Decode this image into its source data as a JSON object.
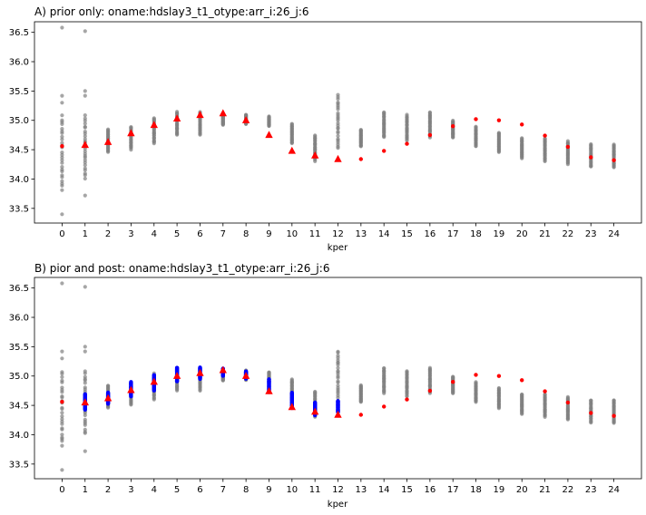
{
  "chart_data": [
    {
      "type": "scatter",
      "title": "A) prior only: oname:hdslay3_t1_otype:arr_i:26_j:6",
      "xlabel": "kper",
      "ylabel": "",
      "x_ticks": [
        0,
        1,
        2,
        3,
        4,
        5,
        6,
        7,
        8,
        9,
        10,
        11,
        12,
        13,
        14,
        15,
        16,
        17,
        18,
        19,
        20,
        21,
        22,
        23,
        24
      ],
      "y_ticks": [
        33.5,
        34.0,
        34.5,
        35.0,
        35.5,
        36.0,
        36.5
      ],
      "y_tick_labels": [
        "33.5",
        "34.0",
        "34.5",
        "35.0",
        "35.5",
        "36.0",
        "36.5"
      ],
      "xlim": [
        -1.2,
        25.2
      ],
      "ylim": [
        33.25,
        36.68
      ],
      "grid": false,
      "prior_color": "#808080",
      "obs_color": "#ff0000",
      "prior_ranges": [
        {
          "kper": 0,
          "lo": 33.8,
          "hi": 35.1
        },
        {
          "kper": 1,
          "lo": 34.0,
          "hi": 35.1
        },
        {
          "kper": 2,
          "lo": 34.45,
          "hi": 34.85
        },
        {
          "kper": 3,
          "lo": 34.5,
          "hi": 34.9
        },
        {
          "kper": 4,
          "lo": 34.6,
          "hi": 35.05
        },
        {
          "kper": 5,
          "lo": 34.75,
          "hi": 35.15
        },
        {
          "kper": 6,
          "lo": 34.75,
          "hi": 35.15
        },
        {
          "kper": 7,
          "lo": 34.92,
          "hi": 35.12
        },
        {
          "kper": 8,
          "lo": 34.93,
          "hi": 35.1
        },
        {
          "kper": 9,
          "lo": 34.9,
          "hi": 35.07
        },
        {
          "kper": 10,
          "lo": 34.6,
          "hi": 34.95
        },
        {
          "kper": 11,
          "lo": 34.3,
          "hi": 34.75
        },
        {
          "kper": 12,
          "lo": 34.5,
          "hi": 35.45
        },
        {
          "kper": 13,
          "lo": 34.55,
          "hi": 34.85
        },
        {
          "kper": 14,
          "lo": 34.7,
          "hi": 35.15
        },
        {
          "kper": 15,
          "lo": 34.65,
          "hi": 35.1
        },
        {
          "kper": 16,
          "lo": 34.7,
          "hi": 35.15
        },
        {
          "kper": 17,
          "lo": 34.7,
          "hi": 35.0
        },
        {
          "kper": 18,
          "lo": 34.55,
          "hi": 34.9
        },
        {
          "kper": 19,
          "lo": 34.45,
          "hi": 34.8
        },
        {
          "kper": 20,
          "lo": 34.35,
          "hi": 34.7
        },
        {
          "kper": 21,
          "lo": 34.3,
          "hi": 34.7
        },
        {
          "kper": 22,
          "lo": 34.25,
          "hi": 34.65
        },
        {
          "kper": 23,
          "lo": 34.2,
          "hi": 34.6
        },
        {
          "kper": 24,
          "lo": 34.2,
          "hi": 34.6
        }
      ],
      "prior_outliers": [
        {
          "kper": 0,
          "y": 36.58
        },
        {
          "kper": 0,
          "y": 35.42
        },
        {
          "kper": 0,
          "y": 35.3
        },
        {
          "kper": 0,
          "y": 33.4
        },
        {
          "kper": 1,
          "y": 36.52
        },
        {
          "kper": 1,
          "y": 35.5
        },
        {
          "kper": 1,
          "y": 35.42
        },
        {
          "kper": 1,
          "y": 33.72
        },
        {
          "kper": 24,
          "y": 34.2
        }
      ],
      "obs_triangles": [
        {
          "kper": 1,
          "y": 34.58
        },
        {
          "kper": 2,
          "y": 34.63
        },
        {
          "kper": 3,
          "y": 34.78
        },
        {
          "kper": 4,
          "y": 34.92
        },
        {
          "kper": 5,
          "y": 35.03
        },
        {
          "kper": 6,
          "y": 35.09
        },
        {
          "kper": 7,
          "y": 35.12
        },
        {
          "kper": 8,
          "y": 35.0
        },
        {
          "kper": 9,
          "y": 34.75
        },
        {
          "kper": 10,
          "y": 34.48
        },
        {
          "kper": 11,
          "y": 34.4
        },
        {
          "kper": 12,
          "y": 34.34
        }
      ],
      "obs_dots": [
        {
          "kper": 0,
          "y": 34.56
        },
        {
          "kper": 13,
          "y": 34.34
        },
        {
          "kper": 14,
          "y": 34.48
        },
        {
          "kper": 15,
          "y": 34.6
        },
        {
          "kper": 16,
          "y": 34.75
        },
        {
          "kper": 17,
          "y": 34.9
        },
        {
          "kper": 18,
          "y": 35.02
        },
        {
          "kper": 19,
          "y": 35.0
        },
        {
          "kper": 20,
          "y": 34.93
        },
        {
          "kper": 21,
          "y": 34.74
        },
        {
          "kper": 22,
          "y": 34.55
        },
        {
          "kper": 23,
          "y": 34.37
        },
        {
          "kper": 24,
          "y": 34.32
        }
      ]
    },
    {
      "type": "scatter",
      "title": "B) pior and post: oname:hdslay3_t1_otype:arr_i:26_j:6",
      "xlabel": "kper",
      "ylabel": "",
      "x_ticks": [
        0,
        1,
        2,
        3,
        4,
        5,
        6,
        7,
        8,
        9,
        10,
        11,
        12,
        13,
        14,
        15,
        16,
        17,
        18,
        19,
        20,
        21,
        22,
        23,
        24
      ],
      "y_ticks": [
        33.5,
        34.0,
        34.5,
        35.0,
        35.5,
        36.0,
        36.5
      ],
      "y_tick_labels": [
        "33.5",
        "34.0",
        "34.5",
        "35.0",
        "35.5",
        "36.0",
        "36.5"
      ],
      "xlim": [
        -1.2,
        25.2
      ],
      "ylim": [
        33.25,
        36.68
      ],
      "grid": false,
      "prior_color": "#808080",
      "post_color": "#0000ff",
      "obs_color": "#ff0000",
      "prior_ranges": [
        {
          "kper": 0,
          "lo": 33.8,
          "hi": 35.1
        },
        {
          "kper": 1,
          "lo": 34.0,
          "hi": 35.1
        },
        {
          "kper": 2,
          "lo": 34.45,
          "hi": 34.85
        },
        {
          "kper": 3,
          "lo": 34.5,
          "hi": 34.9
        },
        {
          "kper": 4,
          "lo": 34.6,
          "hi": 35.05
        },
        {
          "kper": 5,
          "lo": 34.75,
          "hi": 35.15
        },
        {
          "kper": 6,
          "lo": 34.75,
          "hi": 35.15
        },
        {
          "kper": 7,
          "lo": 34.92,
          "hi": 35.12
        },
        {
          "kper": 8,
          "lo": 34.93,
          "hi": 35.1
        },
        {
          "kper": 9,
          "lo": 34.9,
          "hi": 35.07
        },
        {
          "kper": 10,
          "lo": 34.6,
          "hi": 34.95
        },
        {
          "kper": 11,
          "lo": 34.3,
          "hi": 34.75
        },
        {
          "kper": 12,
          "lo": 34.5,
          "hi": 35.45
        },
        {
          "kper": 13,
          "lo": 34.55,
          "hi": 34.85
        },
        {
          "kper": 14,
          "lo": 34.7,
          "hi": 35.15
        },
        {
          "kper": 15,
          "lo": 34.65,
          "hi": 35.1
        },
        {
          "kper": 16,
          "lo": 34.7,
          "hi": 35.15
        },
        {
          "kper": 17,
          "lo": 34.7,
          "hi": 35.0
        },
        {
          "kper": 18,
          "lo": 34.55,
          "hi": 34.9
        },
        {
          "kper": 19,
          "lo": 34.45,
          "hi": 34.8
        },
        {
          "kper": 20,
          "lo": 34.35,
          "hi": 34.7
        },
        {
          "kper": 21,
          "lo": 34.3,
          "hi": 34.7
        },
        {
          "kper": 22,
          "lo": 34.25,
          "hi": 34.65
        },
        {
          "kper": 23,
          "lo": 34.2,
          "hi": 34.6
        },
        {
          "kper": 24,
          "lo": 34.2,
          "hi": 34.6
        }
      ],
      "prior_outliers": [
        {
          "kper": 0,
          "y": 36.58
        },
        {
          "kper": 0,
          "y": 35.42
        },
        {
          "kper": 0,
          "y": 35.3
        },
        {
          "kper": 0,
          "y": 33.4
        },
        {
          "kper": 1,
          "y": 36.52
        },
        {
          "kper": 1,
          "y": 35.5
        },
        {
          "kper": 1,
          "y": 35.42
        },
        {
          "kper": 1,
          "y": 33.72
        },
        {
          "kper": 24,
          "y": 34.2
        }
      ],
      "post_ranges": [
        {
          "kper": 1,
          "lo": 34.42,
          "hi": 34.7
        },
        {
          "kper": 2,
          "lo": 34.52,
          "hi": 34.72
        },
        {
          "kper": 3,
          "lo": 34.65,
          "hi": 34.9
        },
        {
          "kper": 4,
          "lo": 34.75,
          "hi": 35.02
        },
        {
          "kper": 5,
          "lo": 34.9,
          "hi": 35.15
        },
        {
          "kper": 6,
          "lo": 34.95,
          "hi": 35.15
        },
        {
          "kper": 7,
          "lo": 35.0,
          "hi": 35.13
        },
        {
          "kper": 8,
          "lo": 34.95,
          "hi": 35.08
        },
        {
          "kper": 9,
          "lo": 34.72,
          "hi": 34.95
        },
        {
          "kper": 10,
          "lo": 34.45,
          "hi": 34.72
        },
        {
          "kper": 11,
          "lo": 34.33,
          "hi": 34.55
        },
        {
          "kper": 12,
          "lo": 34.38,
          "hi": 34.58
        }
      ],
      "obs_triangles": [
        {
          "kper": 1,
          "y": 34.55
        },
        {
          "kper": 2,
          "y": 34.62
        },
        {
          "kper": 3,
          "y": 34.76
        },
        {
          "kper": 4,
          "y": 34.9
        },
        {
          "kper": 5,
          "y": 35.0
        },
        {
          "kper": 6,
          "y": 35.05
        },
        {
          "kper": 7,
          "y": 35.1
        },
        {
          "kper": 8,
          "y": 35.0
        },
        {
          "kper": 9,
          "y": 34.74
        },
        {
          "kper": 10,
          "y": 34.47
        },
        {
          "kper": 11,
          "y": 34.39
        },
        {
          "kper": 12,
          "y": 34.34
        }
      ],
      "obs_dots": [
        {
          "kper": 0,
          "y": 34.56
        },
        {
          "kper": 13,
          "y": 34.34
        },
        {
          "kper": 14,
          "y": 34.48
        },
        {
          "kper": 15,
          "y": 34.6
        },
        {
          "kper": 16,
          "y": 34.75
        },
        {
          "kper": 17,
          "y": 34.9
        },
        {
          "kper": 18,
          "y": 35.02
        },
        {
          "kper": 19,
          "y": 35.0
        },
        {
          "kper": 20,
          "y": 34.93
        },
        {
          "kper": 21,
          "y": 34.74
        },
        {
          "kper": 22,
          "y": 34.55
        },
        {
          "kper": 23,
          "y": 34.37
        },
        {
          "kper": 24,
          "y": 34.32
        }
      ]
    }
  ]
}
